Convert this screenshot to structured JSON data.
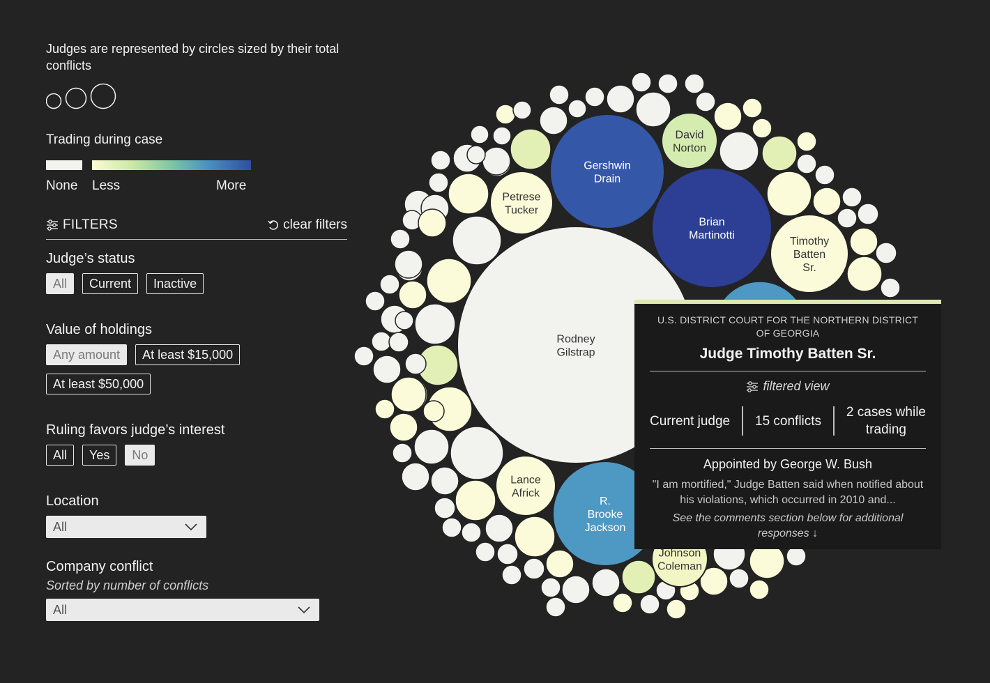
{
  "legend": {
    "size_title": "Judges are represented by circles sized by their total conflicts",
    "color_title": "Trading during case",
    "color_none": "None",
    "color_less": "Less",
    "color_more": "More"
  },
  "filters": {
    "title": "FILTERS",
    "clear_label": "clear filters",
    "status": {
      "title": "Judge’s status",
      "options": [
        "All",
        "Current",
        "Inactive"
      ],
      "selected": "All"
    },
    "holdings": {
      "title": "Value of holdings",
      "options": [
        "Any amount",
        "At least $15,000",
        "At least $50,000"
      ],
      "selected": "Any amount"
    },
    "ruling": {
      "title": "Ruling favors judge’s interest",
      "options": [
        "All",
        "Yes",
        "No"
      ],
      "selected": "No"
    },
    "location": {
      "title": "Location",
      "value": "All"
    },
    "company": {
      "title": "Company conflict",
      "subtitle": "Sorted by number of conflicts",
      "value": "All"
    }
  },
  "colors": {
    "background": "#232323",
    "none": "#f2f2ee",
    "less": "#fbfbd4",
    "more": "#2f4fa0"
  },
  "bubbles": {
    "labeled": [
      {
        "name": [
          "Rodney",
          "Gilstrap"
        ],
        "color": "#f2f2ee"
      },
      {
        "name": [
          "Gershwin",
          "Drain"
        ],
        "color": "#3557a8"
      },
      {
        "name": [
          "Brian",
          "Martinotti"
        ],
        "color": "#2c3f94"
      },
      {
        "name": [
          "David",
          "Norton"
        ],
        "color": "#d5ecb0"
      },
      {
        "name": [
          "Petrese",
          "Tucker"
        ],
        "color": "#fbfbd9"
      },
      {
        "name": [
          "Timothy",
          "Batten",
          "Sr."
        ],
        "color": "#fbfbd9"
      },
      {
        "name": [
          "Lance",
          "Africk"
        ],
        "color": "#fbfbd9"
      },
      {
        "name": [
          "R.",
          "Brooke",
          "Jackson"
        ],
        "color": "#4e98c4"
      },
      {
        "name": [
          "Johnson",
          "Coleman"
        ],
        "color": "#f2f5c4"
      }
    ]
  },
  "tooltip": {
    "court": "U.S. DISTRICT COURT FOR THE NORTHERN DISTRICT OF GEORGIA",
    "judge": "Judge Timothy Batten Sr.",
    "filtered": "filtered view",
    "status": "Current judge",
    "conflicts": "15 conflicts",
    "cases_line1": "2 cases while",
    "cases_line2": "trading",
    "appointed": "Appointed by George W. Bush",
    "quote": "\"I am mortified,\" Judge Batten said when notified about his violations, which occurred in 2010 and...",
    "note": "See the comments section below for additional responses ↓"
  }
}
